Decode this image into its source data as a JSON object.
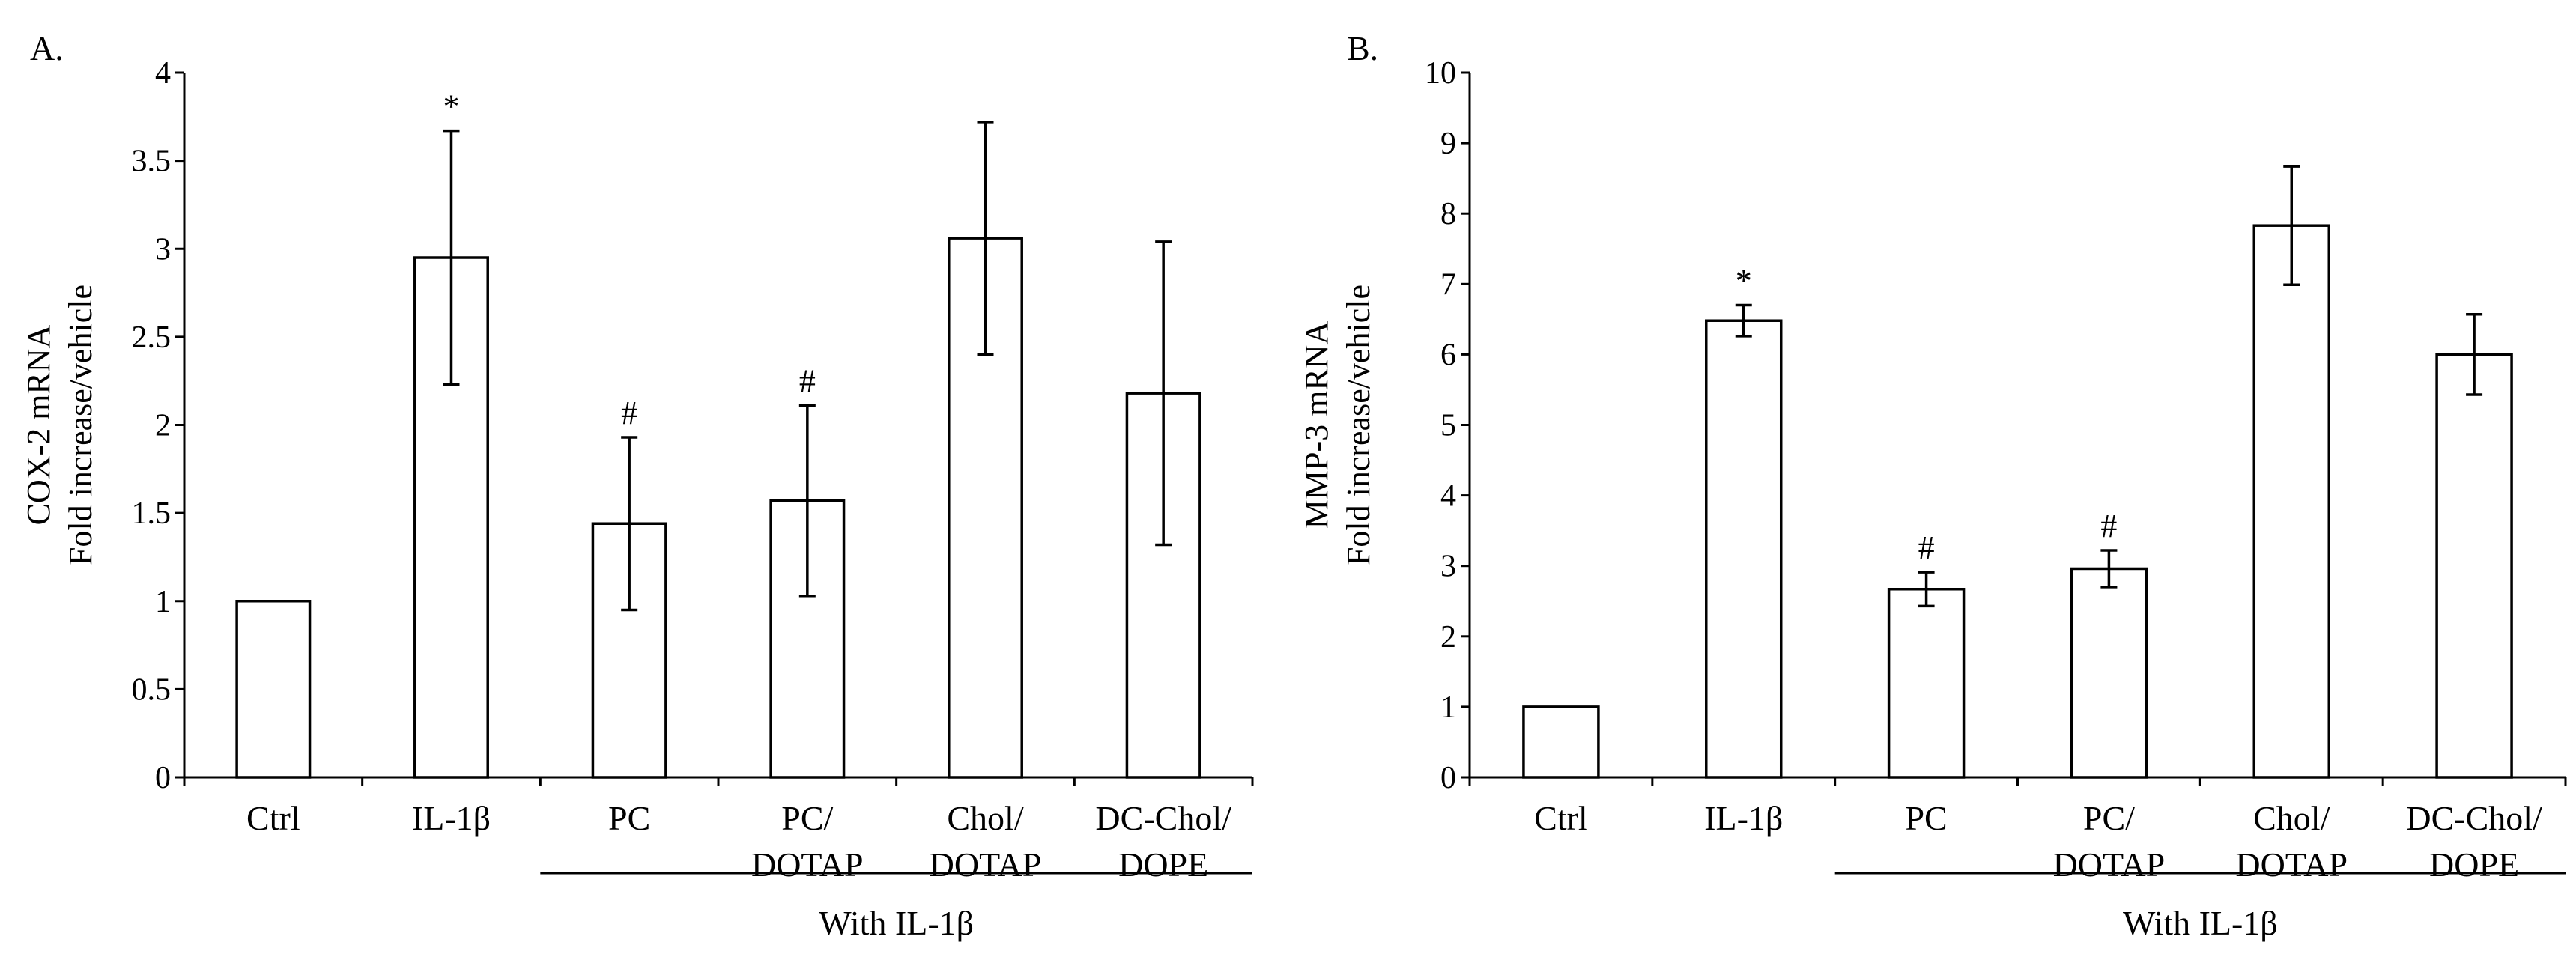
{
  "chart_data": [
    {
      "type": "bar",
      "panel_label": "A.",
      "ylabel_lines": [
        "COX-2 mRNA",
        "Fold  increase/vehicle"
      ],
      "xlabel": "",
      "ylim": [
        0,
        4
      ],
      "yticks": [
        0,
        0.5,
        1,
        1.5,
        2,
        2.5,
        3,
        3.5,
        4
      ],
      "ytick_labels": [
        "0",
        "0.5",
        "1",
        "1.5",
        "2",
        "2.5",
        "3",
        "3.5",
        "4"
      ],
      "grid": false,
      "categories": [
        {
          "lines": [
            "Ctrl"
          ]
        },
        {
          "lines": [
            "IL-1β"
          ]
        },
        {
          "lines": [
            "PC"
          ]
        },
        {
          "lines": [
            "PC/",
            "DOTAP"
          ]
        },
        {
          "lines": [
            "Chol/",
            "DOTAP"
          ]
        },
        {
          "lines": [
            "DC-Chol/",
            "DOPE"
          ]
        }
      ],
      "values": [
        1.0,
        2.95,
        1.44,
        1.57,
        3.06,
        2.18
      ],
      "errors": [
        0,
        0.72,
        0.49,
        0.54,
        0.66,
        0.86
      ],
      "annotations": [
        "",
        "*",
        "#",
        "#",
        "",
        ""
      ],
      "group": {
        "label": "With IL-1β",
        "from_index": 2,
        "to_index": 5
      }
    },
    {
      "type": "bar",
      "panel_label": "B.",
      "ylabel_lines": [
        "MMP-3 mRNA",
        "Fold  increase/vehicle"
      ],
      "xlabel": "",
      "ylim": [
        0,
        10
      ],
      "yticks": [
        0,
        1,
        2,
        3,
        4,
        5,
        6,
        7,
        8,
        9,
        10
      ],
      "ytick_labels": [
        "0",
        "1",
        "2",
        "3",
        "4",
        "5",
        "6",
        "7",
        "8",
        "9",
        "10"
      ],
      "grid": false,
      "categories": [
        {
          "lines": [
            "Ctrl"
          ]
        },
        {
          "lines": [
            "IL-1β"
          ]
        },
        {
          "lines": [
            "PC"
          ]
        },
        {
          "lines": [
            "PC/",
            "DOTAP"
          ]
        },
        {
          "lines": [
            "Chol/",
            "DOTAP"
          ]
        },
        {
          "lines": [
            "DC-Chol/",
            "DOPE"
          ]
        }
      ],
      "values": [
        1.0,
        6.48,
        2.67,
        2.96,
        7.83,
        6.0
      ],
      "errors": [
        0,
        0.22,
        0.24,
        0.26,
        0.84,
        0.57
      ],
      "annotations": [
        "",
        "*",
        "#",
        "#",
        "",
        ""
      ],
      "group": {
        "label": "With IL-1β",
        "from_index": 2,
        "to_index": 5
      }
    }
  ]
}
